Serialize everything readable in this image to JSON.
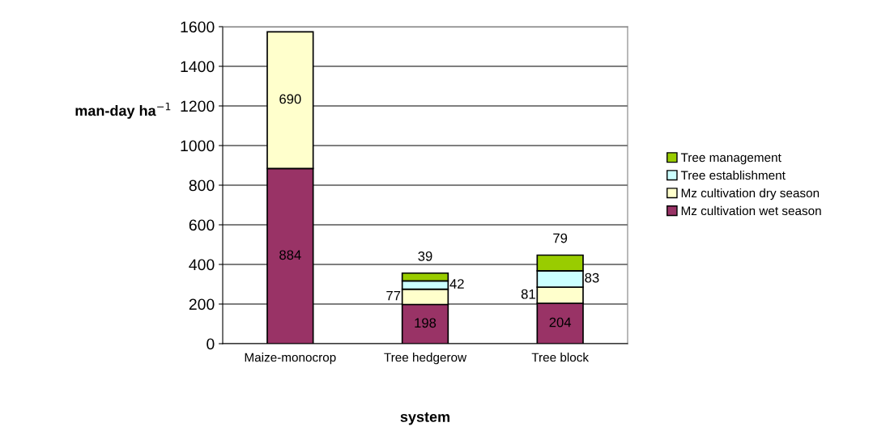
{
  "chart_data": {
    "type": "bar",
    "stacked": true,
    "xlabel": "system",
    "ylabel": "man-day ha$^{−1}$",
    "categories": [
      "Maize-monocrop",
      "Tree hedgerow",
      "Tree block"
    ],
    "series": [
      {
        "name": "Mz cultivation wet season",
        "color": "#993366",
        "values": [
          884,
          198,
          204
        ]
      },
      {
        "name": "Mz cultivation dry season",
        "color": "#ffffcc",
        "values": [
          690,
          77,
          81
        ]
      },
      {
        "name": "Tree establishment",
        "color": "#ccffff",
        "values": [
          null,
          42,
          83
        ]
      },
      {
        "name": "Tree management",
        "color": "#99cc00",
        "values": [
          null,
          39,
          79
        ]
      }
    ],
    "ylim": [
      0,
      1600
    ],
    "yticks": [
      0,
      200,
      400,
      600,
      800,
      1000,
      1200,
      1400,
      1600
    ],
    "grid": "y",
    "legend": "right",
    "data_labels": true
  }
}
